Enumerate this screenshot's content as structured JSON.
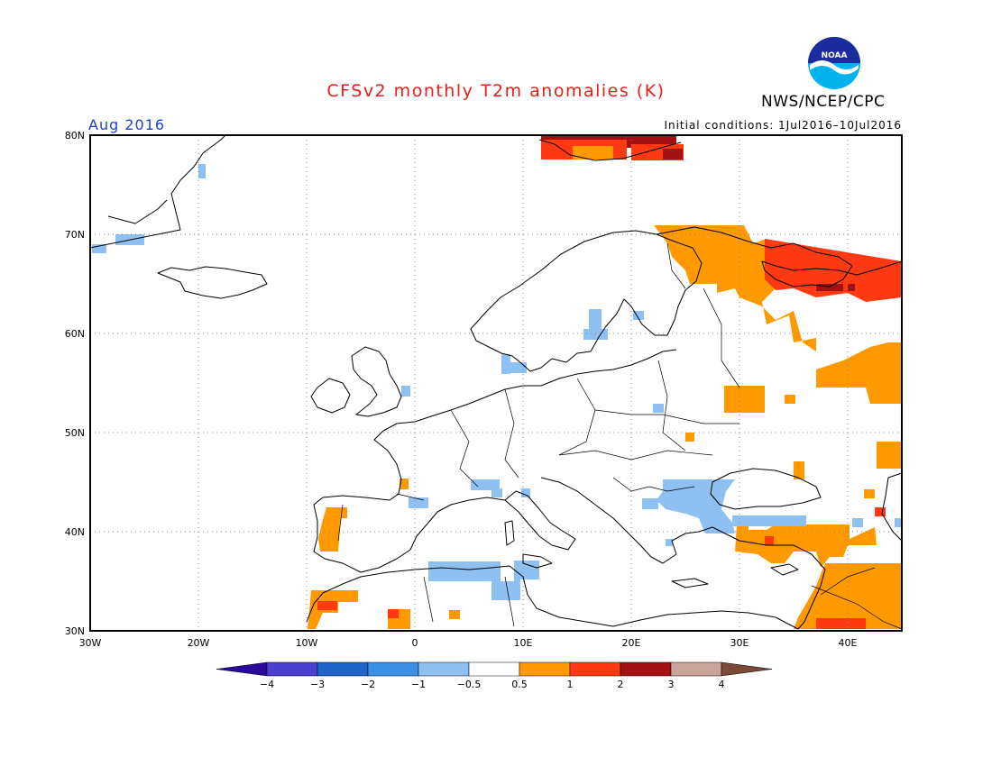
{
  "header": {
    "title": "CFSv2 monthly T2m anomalies (K)",
    "agency": "NWS/NCEP/CPC",
    "logo_text": "NOAA",
    "month": "Aug 2016",
    "initial_conditions": "Initial conditions: 1Jul2016–10Jul2016"
  },
  "map": {
    "lon_range": [
      -30,
      45
    ],
    "lat_range": [
      30,
      80
    ],
    "lat_labels": [
      "80N",
      "70N",
      "60N",
      "50N",
      "40N",
      "30N"
    ],
    "lon_labels": [
      "30W",
      "20W",
      "10W",
      "0",
      "10E",
      "20E",
      "30E",
      "40E"
    ],
    "grid": "dotted"
  },
  "colorbar": {
    "tick_labels": [
      "−4",
      "−3",
      "−2",
      "−1",
      "−0.5",
      "0.5",
      "1",
      "2",
      "3",
      "4"
    ],
    "colors": [
      "#2a0a9c",
      "#4b3fd0",
      "#1f64c8",
      "#3a8fe6",
      "#8ec0f2",
      "#ffffff",
      "#ff9900",
      "#ff3a12",
      "#a31212",
      "#c9a49a",
      "#7a4a3a"
    ]
  },
  "anomaly_patches": [
    {
      "name": "svalbard-warm",
      "class": "1-2",
      "color": "#ff3a12"
    },
    {
      "name": "svalbard-dark",
      "class": "2-3",
      "color": "#a31212"
    },
    {
      "name": "svalbard-orange",
      "class": "0.5-1",
      "color": "#ff9900"
    },
    {
      "name": "nw-russia-orange",
      "class": "0.5-1",
      "color": "#ff9900"
    },
    {
      "name": "white-sea-red",
      "class": "1-2",
      "color": "#ff3a12"
    },
    {
      "name": "white-sea-dark",
      "class": "2-3",
      "color": "#a31212"
    },
    {
      "name": "russia-east-orange",
      "class": "0.5-1",
      "color": "#ff9900"
    },
    {
      "name": "ukraine-orange",
      "class": "0.5-1",
      "color": "#ff9900"
    },
    {
      "name": "caucasus-orange",
      "class": "0.5-1",
      "color": "#ff9900"
    },
    {
      "name": "turkey-orange",
      "class": "0.5-1",
      "color": "#ff9900"
    },
    {
      "name": "levant-orange",
      "class": "0.5-1",
      "color": "#ff9900"
    },
    {
      "name": "arabia-red",
      "class": "1-2",
      "color": "#ff3a12"
    },
    {
      "name": "iberia-orange",
      "class": "0.5-1",
      "color": "#ff9900"
    },
    {
      "name": "morocco-orange",
      "class": "0.5-1",
      "color": "#ff9900"
    },
    {
      "name": "morocco-red",
      "class": "1-2",
      "color": "#ff3a12"
    },
    {
      "name": "balkans-blue",
      "class": "-1 to -0.5",
      "color": "#8ec0f2"
    },
    {
      "name": "mediterranean-blue",
      "class": "-1 to -0.5",
      "color": "#8ec0f2"
    },
    {
      "name": "baltic-blue",
      "class": "-1 to -0.5",
      "color": "#8ec0f2"
    },
    {
      "name": "greenland-blue",
      "class": "-1 to -0.5",
      "color": "#8ec0f2"
    }
  ]
}
